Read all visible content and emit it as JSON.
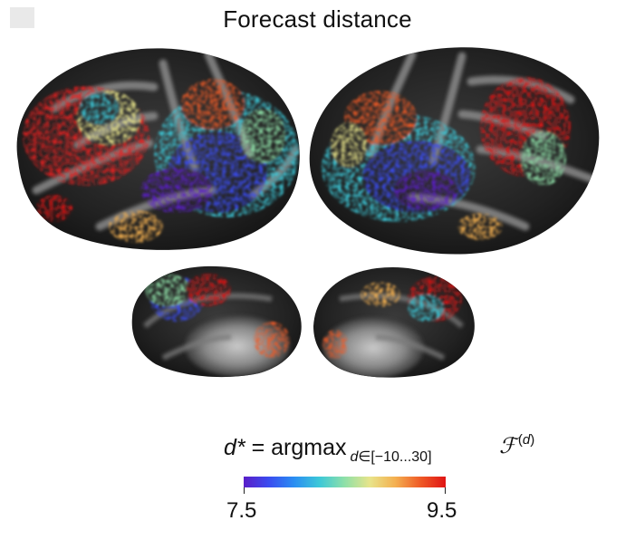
{
  "figure": {
    "title": "Forecast distance"
  },
  "formula": {
    "variable": "d*",
    "equals": " = argmax",
    "subscript_var": "d",
    "subscript_range": "∈[−10...30]",
    "function_symbol": "ℱ",
    "superscript": "d"
  },
  "colorbar": {
    "min_label": "7.5",
    "max_label": "9.5",
    "min_value": 7.5,
    "max_value": 9.5,
    "colormap": [
      "#5a1ec8",
      "#3a4cf0",
      "#2a8ef2",
      "#3cc8d8",
      "#8fe0a8",
      "#e8e48a",
      "#f4b050",
      "#ef5a26",
      "#e01414"
    ]
  },
  "views": [
    {
      "name": "left-hemisphere-lateral"
    },
    {
      "name": "right-hemisphere-lateral"
    },
    {
      "name": "left-hemisphere-medial"
    },
    {
      "name": "right-hemisphere-medial"
    }
  ]
}
